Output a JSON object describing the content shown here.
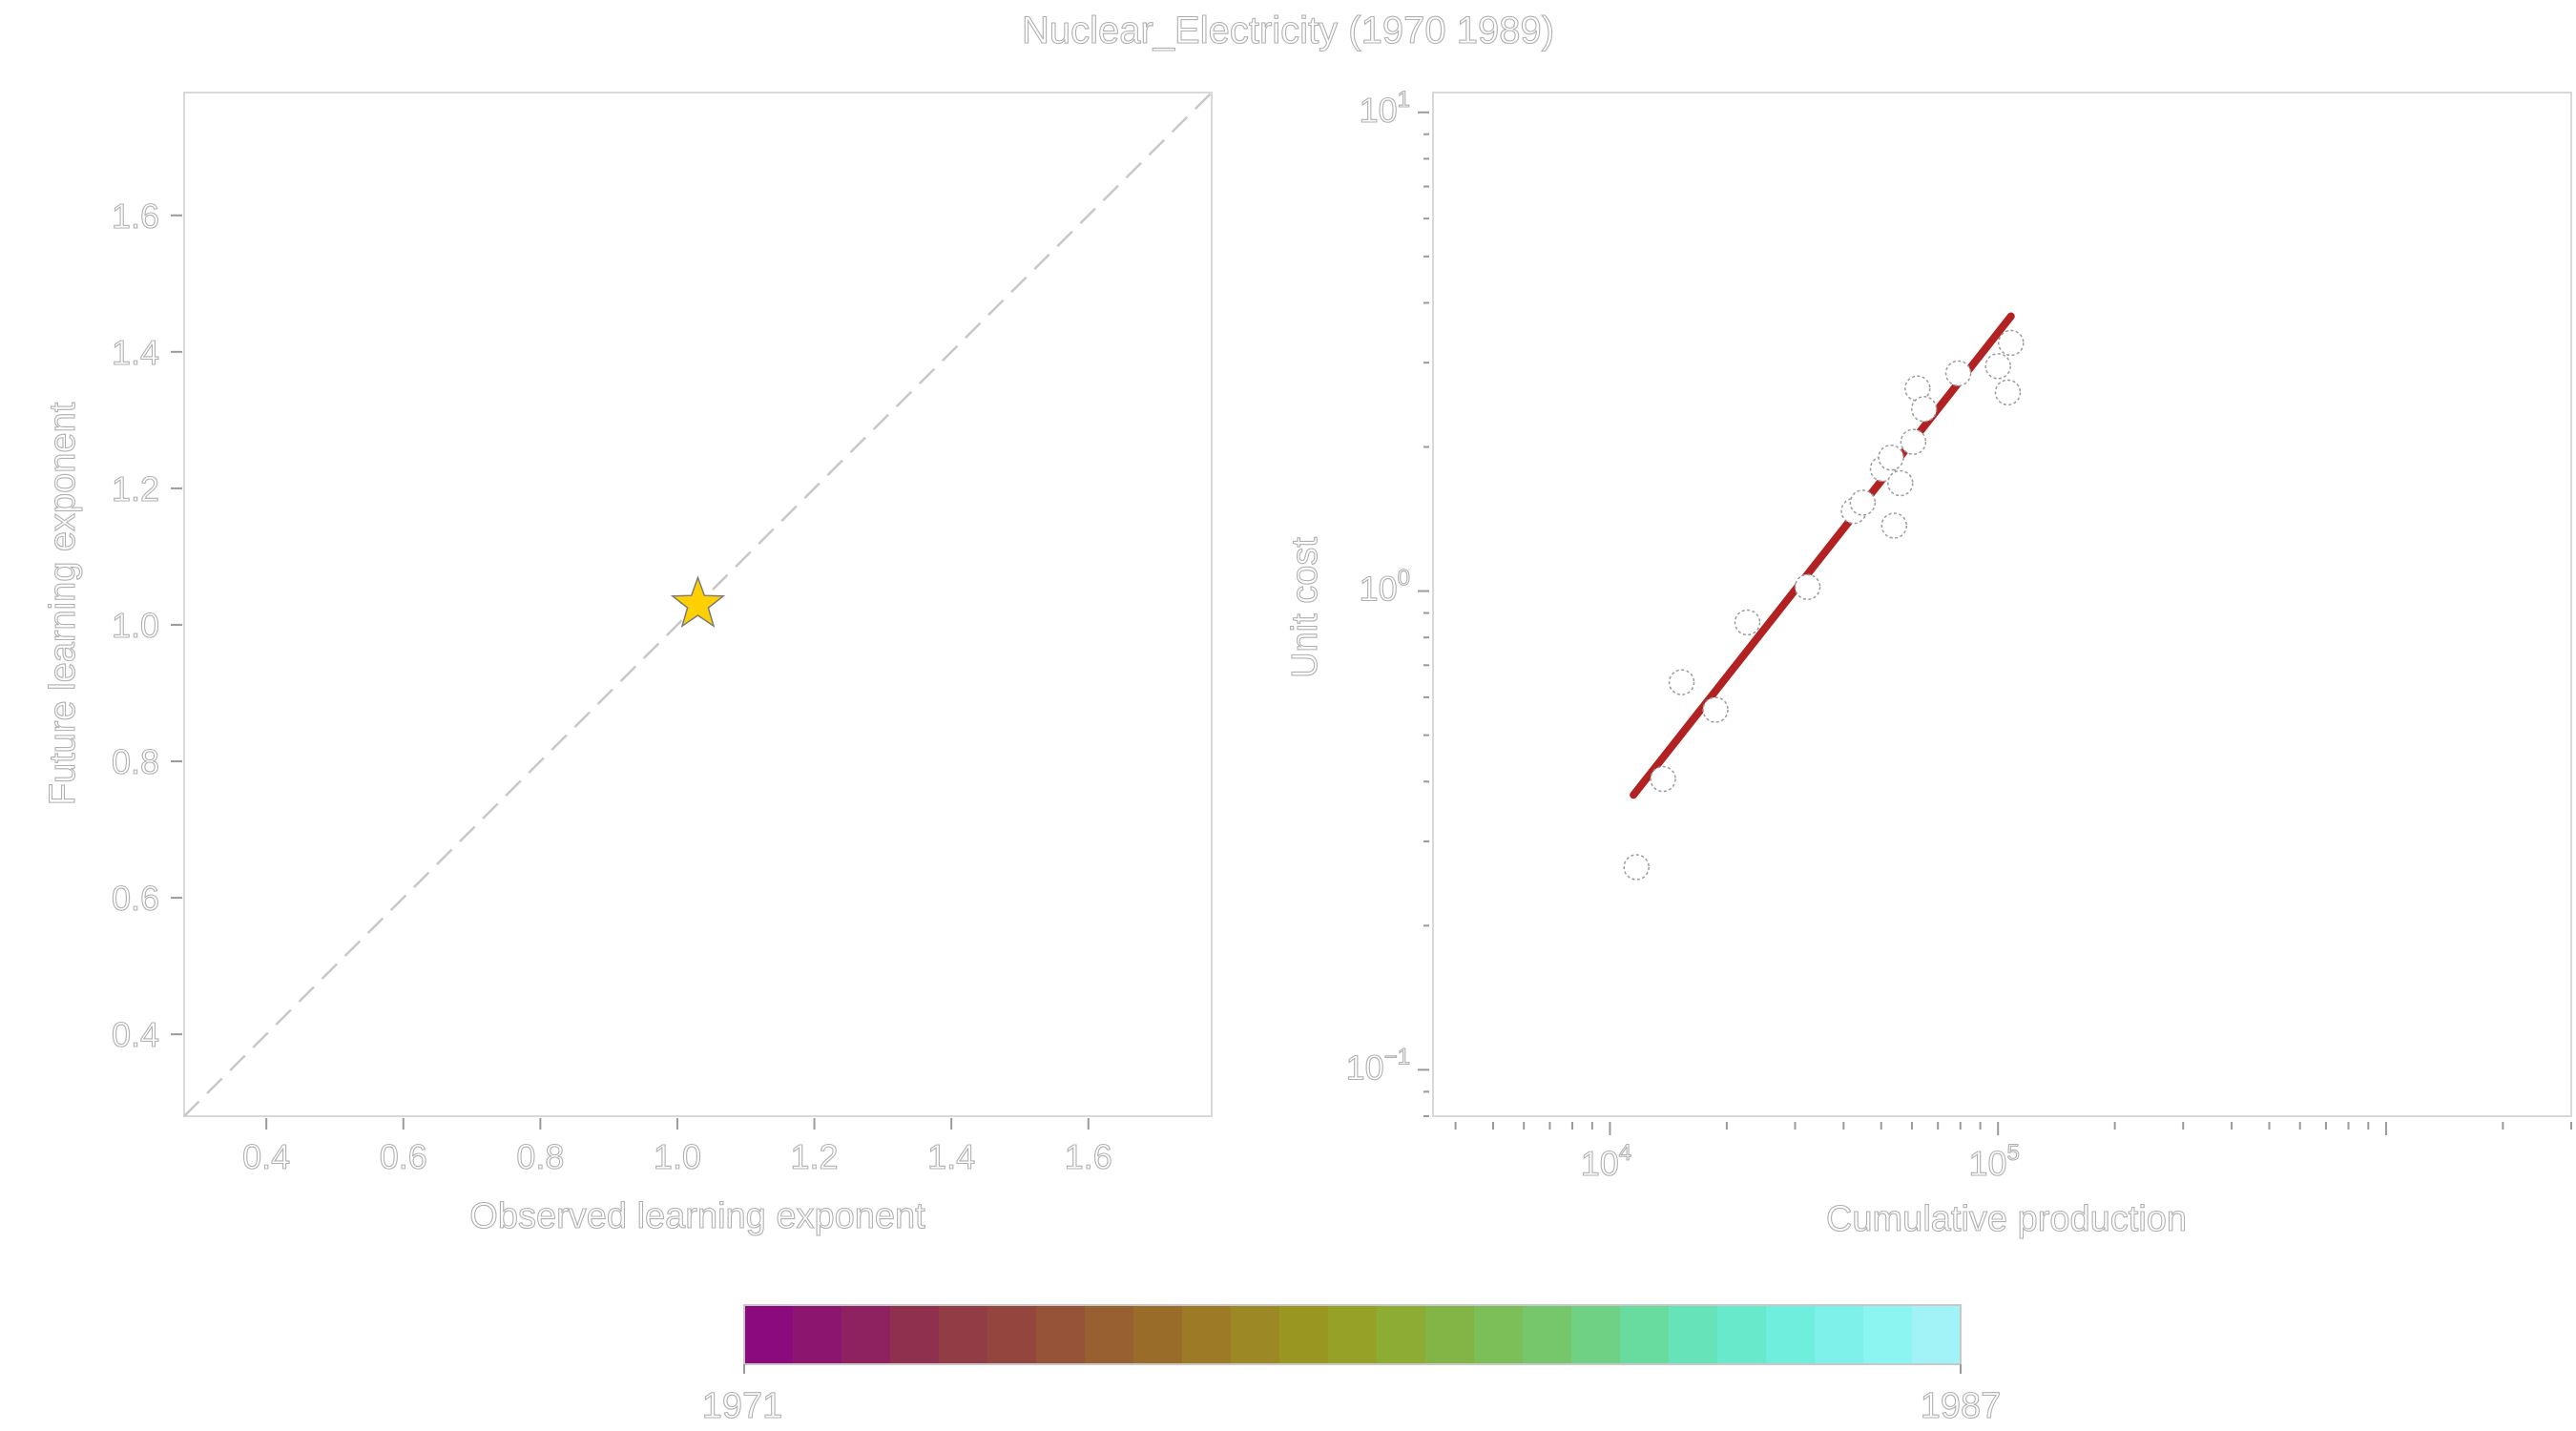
{
  "figure": {
    "title": "Nuclear_Electricity (1970 1989)"
  },
  "chart_data": [
    {
      "type": "scatter",
      "xlabel": "Observed learning exponent",
      "ylabel": "Future learning exponent",
      "xlim": [
        0.28,
        1.78
      ],
      "ylim": [
        0.28,
        1.78
      ],
      "x_ticks": [
        "0.4",
        "0.6",
        "0.8",
        "1.0",
        "1.2",
        "1.4",
        "1.6"
      ],
      "y_ticks": [
        "0.4",
        "0.6",
        "0.8",
        "1.0",
        "1.2",
        "1.4",
        "1.6"
      ],
      "reference_line": {
        "from": [
          0.28,
          0.28
        ],
        "to": [
          1.78,
          1.78
        ],
        "style": "dashed",
        "color": "#c8c8c8"
      },
      "points": [
        {
          "x": 1.03,
          "y": 1.03,
          "marker": "star",
          "color": "#FFD000"
        }
      ],
      "grid": false
    },
    {
      "type": "scatter",
      "xlabel": "Cumulative production",
      "ylabel": "Unit cost",
      "x_scale": "log",
      "y_scale": "log",
      "xlim": [
        3500,
        3000000
      ],
      "ylim": [
        0.08,
        11
      ],
      "x_ticks": [
        {
          "base": "10",
          "exp": "4",
          "value": 10000
        },
        {
          "base": "10",
          "exp": "5",
          "value": 100000
        }
      ],
      "y_ticks": [
        {
          "base": "10",
          "exp": "−1",
          "value": 0.1
        },
        {
          "base": "10",
          "exp": "0",
          "value": 1
        },
        {
          "base": "10",
          "exp": "1",
          "value": 10
        }
      ],
      "points": [
        {
          "x": 11700,
          "y": 0.265
        },
        {
          "x": 13700,
          "y": 0.405
        },
        {
          "x": 15300,
          "y": 0.645
        },
        {
          "x": 18700,
          "y": 0.565
        },
        {
          "x": 22600,
          "y": 0.86
        },
        {
          "x": 32300,
          "y": 1.02
        },
        {
          "x": 42500,
          "y": 1.47
        },
        {
          "x": 44800,
          "y": 1.53
        },
        {
          "x": 50500,
          "y": 1.8
        },
        {
          "x": 53000,
          "y": 1.9
        },
        {
          "x": 54000,
          "y": 1.37
        },
        {
          "x": 56000,
          "y": 1.68
        },
        {
          "x": 60500,
          "y": 2.05
        },
        {
          "x": 62000,
          "y": 2.65
        },
        {
          "x": 64500,
          "y": 2.4
        },
        {
          "x": 79000,
          "y": 2.85
        },
        {
          "x": 100000,
          "y": 2.95
        },
        {
          "x": 106000,
          "y": 2.6
        },
        {
          "x": 108000,
          "y": 3.3
        }
      ],
      "fit_line": {
        "from": [
          11500,
          0.375
        ],
        "to": [
          108000,
          3.75
        ],
        "color": "#B22222"
      },
      "grid": false
    }
  ],
  "colorbar": {
    "min_label": "1971",
    "max_label": "1987",
    "colors": [
      "#8b0a7e",
      "#8c1570",
      "#8e2160",
      "#90304f",
      "#923c45",
      "#94463e",
      "#965338",
      "#986030",
      "#9a6c2a",
      "#9c7a26",
      "#9c8824",
      "#9a9622",
      "#95a227",
      "#8cac33",
      "#82b545",
      "#7cbe58",
      "#76c76b",
      "#6fd183",
      "#68db9e",
      "#66e3b8",
      "#68e9cc",
      "#70eedd",
      "#7ef2ea",
      "#8cf5f1",
      "#a2f3f7"
    ]
  }
}
